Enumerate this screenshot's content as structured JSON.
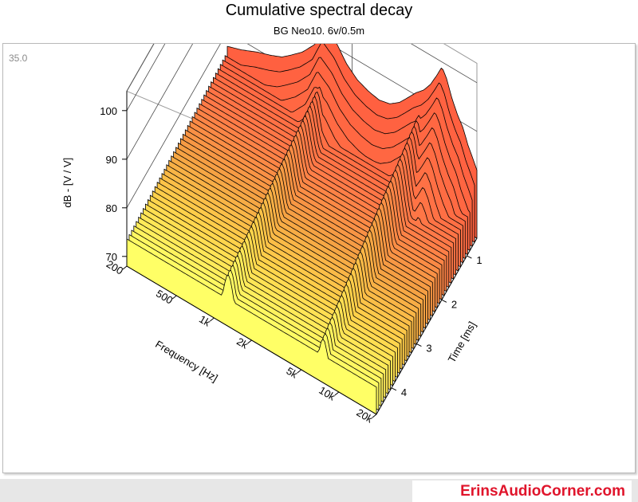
{
  "chart_data": {
    "type": "waterfall-3d",
    "title": "Cumulative spectral decay",
    "subtitle": "BG Neo10.  6v/0.5m",
    "corner_label": "35.0",
    "zlabel": "dB - [V / V]",
    "xlabel": "Frequency [Hz]",
    "ylabel": "Time [ms]",
    "z_ticks": [
      70,
      80,
      90,
      100
    ],
    "z_tick_labels": [
      "70",
      "80",
      "90",
      "100"
    ],
    "zlim": [
      68,
      104
    ],
    "x_ticks": [
      200,
      500,
      1000,
      2000,
      5000,
      10000,
      20000
    ],
    "x_tick_labels": [
      "200",
      "500",
      "1k",
      "2k",
      "5k",
      "10k",
      "20k"
    ],
    "xlim": [
      200,
      20000
    ],
    "x_scale": "log",
    "y_ticks": [
      1,
      2,
      3,
      4
    ],
    "y_tick_labels": [
      "1",
      "2",
      "3",
      "4"
    ],
    "ylim": [
      0.6,
      4.6
    ],
    "colormap": [
      "#ffff66",
      "#ffd24a",
      "#f5a043",
      "#ff7a47",
      "#ff6040"
    ],
    "initial_response": {
      "freq_hz": [
        200,
        260,
        350,
        450,
        550,
        650,
        800,
        1000,
        1200,
        1500,
        1800,
        2200,
        2700,
        3300,
        4000,
        4800,
        5600,
        6500,
        7500,
        8500,
        9500,
        10500,
        11500,
        12500,
        14000,
        15500,
        17000,
        18500,
        20000
      ],
      "db": [
        77,
        78,
        79.5,
        80.5,
        81.5,
        83,
        85,
        88,
        93,
        91,
        88,
        86,
        85,
        84.5,
        85,
        86.5,
        88.5,
        90.5,
        92,
        94,
        96.5,
        99,
        97,
        94,
        91,
        89,
        86,
        84,
        82
      ]
    },
    "decay": {
      "floor_db": 76,
      "floor_slope_db_per_octave_per_ms": 0,
      "fast_decay_db_per_ms": 24,
      "resonances": [
        {
          "freq_hz": 1300,
          "level_db": 9,
          "width_octaves": 0.18,
          "decay_db_per_ms": 1.6
        },
        {
          "freq_hz": 7500,
          "level_db": 13,
          "width_octaves": 0.22,
          "decay_db_per_ms": 3.0
        }
      ]
    }
  },
  "watermark": "ErinsAudioCorner.com"
}
